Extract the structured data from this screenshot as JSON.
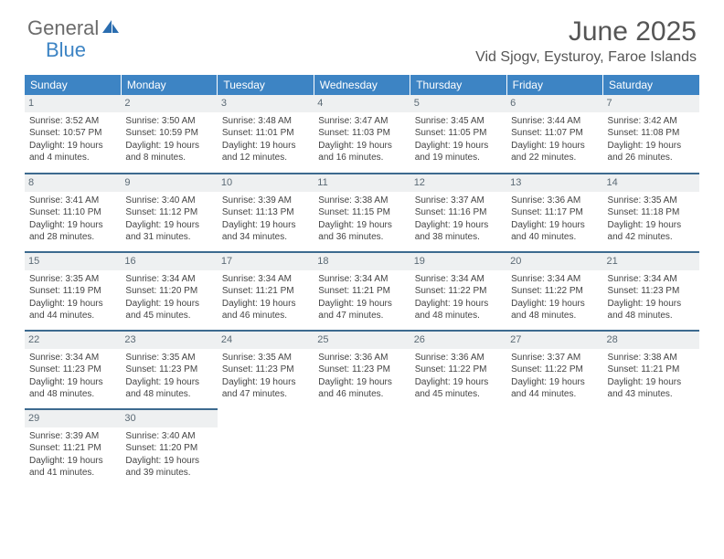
{
  "logo": {
    "text1": "General",
    "text2": "Blue"
  },
  "title": "June 2025",
  "location": "Vid Sjogv, Eysturoy, Faroe Islands",
  "header_bg": "#3d84c4",
  "divider_color": "#3d6a8f",
  "day_header_bg": "#eef0f1",
  "columns": [
    "Sunday",
    "Monday",
    "Tuesday",
    "Wednesday",
    "Thursday",
    "Friday",
    "Saturday"
  ],
  "days": [
    {
      "n": "1",
      "sr": "Sunrise: 3:52 AM",
      "ss": "Sunset: 10:57 PM",
      "dl": "Daylight: 19 hours and 4 minutes."
    },
    {
      "n": "2",
      "sr": "Sunrise: 3:50 AM",
      "ss": "Sunset: 10:59 PM",
      "dl": "Daylight: 19 hours and 8 minutes."
    },
    {
      "n": "3",
      "sr": "Sunrise: 3:48 AM",
      "ss": "Sunset: 11:01 PM",
      "dl": "Daylight: 19 hours and 12 minutes."
    },
    {
      "n": "4",
      "sr": "Sunrise: 3:47 AM",
      "ss": "Sunset: 11:03 PM",
      "dl": "Daylight: 19 hours and 16 minutes."
    },
    {
      "n": "5",
      "sr": "Sunrise: 3:45 AM",
      "ss": "Sunset: 11:05 PM",
      "dl": "Daylight: 19 hours and 19 minutes."
    },
    {
      "n": "6",
      "sr": "Sunrise: 3:44 AM",
      "ss": "Sunset: 11:07 PM",
      "dl": "Daylight: 19 hours and 22 minutes."
    },
    {
      "n": "7",
      "sr": "Sunrise: 3:42 AM",
      "ss": "Sunset: 11:08 PM",
      "dl": "Daylight: 19 hours and 26 minutes."
    },
    {
      "n": "8",
      "sr": "Sunrise: 3:41 AM",
      "ss": "Sunset: 11:10 PM",
      "dl": "Daylight: 19 hours and 28 minutes."
    },
    {
      "n": "9",
      "sr": "Sunrise: 3:40 AM",
      "ss": "Sunset: 11:12 PM",
      "dl": "Daylight: 19 hours and 31 minutes."
    },
    {
      "n": "10",
      "sr": "Sunrise: 3:39 AM",
      "ss": "Sunset: 11:13 PM",
      "dl": "Daylight: 19 hours and 34 minutes."
    },
    {
      "n": "11",
      "sr": "Sunrise: 3:38 AM",
      "ss": "Sunset: 11:15 PM",
      "dl": "Daylight: 19 hours and 36 minutes."
    },
    {
      "n": "12",
      "sr": "Sunrise: 3:37 AM",
      "ss": "Sunset: 11:16 PM",
      "dl": "Daylight: 19 hours and 38 minutes."
    },
    {
      "n": "13",
      "sr": "Sunrise: 3:36 AM",
      "ss": "Sunset: 11:17 PM",
      "dl": "Daylight: 19 hours and 40 minutes."
    },
    {
      "n": "14",
      "sr": "Sunrise: 3:35 AM",
      "ss": "Sunset: 11:18 PM",
      "dl": "Daylight: 19 hours and 42 minutes."
    },
    {
      "n": "15",
      "sr": "Sunrise: 3:35 AM",
      "ss": "Sunset: 11:19 PM",
      "dl": "Daylight: 19 hours and 44 minutes."
    },
    {
      "n": "16",
      "sr": "Sunrise: 3:34 AM",
      "ss": "Sunset: 11:20 PM",
      "dl": "Daylight: 19 hours and 45 minutes."
    },
    {
      "n": "17",
      "sr": "Sunrise: 3:34 AM",
      "ss": "Sunset: 11:21 PM",
      "dl": "Daylight: 19 hours and 46 minutes."
    },
    {
      "n": "18",
      "sr": "Sunrise: 3:34 AM",
      "ss": "Sunset: 11:21 PM",
      "dl": "Daylight: 19 hours and 47 minutes."
    },
    {
      "n": "19",
      "sr": "Sunrise: 3:34 AM",
      "ss": "Sunset: 11:22 PM",
      "dl": "Daylight: 19 hours and 48 minutes."
    },
    {
      "n": "20",
      "sr": "Sunrise: 3:34 AM",
      "ss": "Sunset: 11:22 PM",
      "dl": "Daylight: 19 hours and 48 minutes."
    },
    {
      "n": "21",
      "sr": "Sunrise: 3:34 AM",
      "ss": "Sunset: 11:23 PM",
      "dl": "Daylight: 19 hours and 48 minutes."
    },
    {
      "n": "22",
      "sr": "Sunrise: 3:34 AM",
      "ss": "Sunset: 11:23 PM",
      "dl": "Daylight: 19 hours and 48 minutes."
    },
    {
      "n": "23",
      "sr": "Sunrise: 3:35 AM",
      "ss": "Sunset: 11:23 PM",
      "dl": "Daylight: 19 hours and 48 minutes."
    },
    {
      "n": "24",
      "sr": "Sunrise: 3:35 AM",
      "ss": "Sunset: 11:23 PM",
      "dl": "Daylight: 19 hours and 47 minutes."
    },
    {
      "n": "25",
      "sr": "Sunrise: 3:36 AM",
      "ss": "Sunset: 11:23 PM",
      "dl": "Daylight: 19 hours and 46 minutes."
    },
    {
      "n": "26",
      "sr": "Sunrise: 3:36 AM",
      "ss": "Sunset: 11:22 PM",
      "dl": "Daylight: 19 hours and 45 minutes."
    },
    {
      "n": "27",
      "sr": "Sunrise: 3:37 AM",
      "ss": "Sunset: 11:22 PM",
      "dl": "Daylight: 19 hours and 44 minutes."
    },
    {
      "n": "28",
      "sr": "Sunrise: 3:38 AM",
      "ss": "Sunset: 11:21 PM",
      "dl": "Daylight: 19 hours and 43 minutes."
    },
    {
      "n": "29",
      "sr": "Sunrise: 3:39 AM",
      "ss": "Sunset: 11:21 PM",
      "dl": "Daylight: 19 hours and 41 minutes."
    },
    {
      "n": "30",
      "sr": "Sunrise: 3:40 AM",
      "ss": "Sunset: 11:20 PM",
      "dl": "Daylight: 19 hours and 39 minutes."
    }
  ]
}
